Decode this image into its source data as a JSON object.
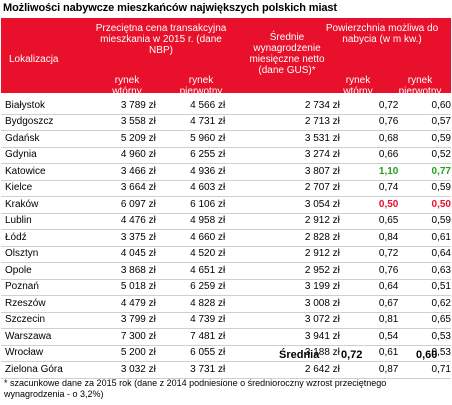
{
  "title": "Możliwości nabywcze mieszkańców największych polskich miast",
  "header": {
    "location": "Lokalizacja",
    "price": "Przeciętna cena transakcyjna mieszkania w 2015 r. (dane NBP)",
    "market_secondary": "rynek wtórny",
    "market_primary": "rynek pierwotny",
    "salary": "Średnie wynagrodzenie miesięczne netto (dane GUS)*",
    "area": "Powierzchnia możliwa do nabycia (w m kw.)",
    "area_secondary": "rynek wtórny",
    "area_primary": "rynek pierwotny"
  },
  "rows": [
    {
      "city": "Białystok",
      "secondary": "3 789 zł",
      "primary": "4 566 zł",
      "salary": "2 734 zł",
      "a_sec": "0,72",
      "a_pri": "0,60"
    },
    {
      "city": "Bydgoszcz",
      "secondary": "3 558 zł",
      "primary": "4 731 zł",
      "salary": "2 713 zł",
      "a_sec": "0,76",
      "a_pri": "0,57"
    },
    {
      "city": "Gdańsk",
      "secondary": "5 209 zł",
      "primary": "5 960 zł",
      "salary": "3 531 zł",
      "a_sec": "0,68",
      "a_pri": "0,59"
    },
    {
      "city": "Gdynia",
      "secondary": "4 960 zł",
      "primary": "6 255 zł",
      "salary": "3 274 zł",
      "a_sec": "0,66",
      "a_pri": "0,52"
    },
    {
      "city": "Katowice",
      "secondary": "3 466 zł",
      "primary": "4 936 zł",
      "salary": "3 807 zł",
      "a_sec": "1,10",
      "a_pri": "0,77",
      "highlight": "green"
    },
    {
      "city": "Kielce",
      "secondary": "3 664 zł",
      "primary": "4 603 zł",
      "salary": "2 707 zł",
      "a_sec": "0,74",
      "a_pri": "0,59"
    },
    {
      "city": "Kraków",
      "secondary": "6 097 zł",
      "primary": "6 106 zł",
      "salary": "3 054 zł",
      "a_sec": "0,50",
      "a_pri": "0,50",
      "highlight": "red"
    },
    {
      "city": "Lublin",
      "secondary": "4 476 zł",
      "primary": "4 958 zł",
      "salary": "2 912 zł",
      "a_sec": "0,65",
      "a_pri": "0,59"
    },
    {
      "city": "Łódź",
      "secondary": "3 375 zł",
      "primary": "4 660 zł",
      "salary": "2 828 zł",
      "a_sec": "0,84",
      "a_pri": "0,61"
    },
    {
      "city": "Olsztyn",
      "secondary": "4 045 zł",
      "primary": "4 520 zł",
      "salary": "2 912 zł",
      "a_sec": "0,72",
      "a_pri": "0,64"
    },
    {
      "city": "Opole",
      "secondary": "3 868 zł",
      "primary": "4 651 zł",
      "salary": "2 952 zł",
      "a_sec": "0,76",
      "a_pri": "0,63"
    },
    {
      "city": "Poznań",
      "secondary": "5 018 zł",
      "primary": "6 259 zł",
      "salary": "3 199 zł",
      "a_sec": "0,64",
      "a_pri": "0,51"
    },
    {
      "city": "Rzeszów",
      "secondary": "4 479 zł",
      "primary": "4 828 zł",
      "salary": "3 008 zł",
      "a_sec": "0,67",
      "a_pri": "0,62"
    },
    {
      "city": "Szczecin",
      "secondary": "3 799 zł",
      "primary": "4 739 zł",
      "salary": "3 072 zł",
      "a_sec": "0,81",
      "a_pri": "0,65"
    },
    {
      "city": "Warszawa",
      "secondary": "7 300 zł",
      "primary": "7 481 zł",
      "salary": "3 941 zł",
      "a_sec": "0,54",
      "a_pri": "0,53"
    },
    {
      "city": "Wrocław",
      "secondary": "5 200 zł",
      "primary": "6 055 zł",
      "salary": "3 188 zł",
      "a_sec": "0,61",
      "a_pri": "0,53"
    },
    {
      "city": "Zielona Góra",
      "secondary": "3 032 zł",
      "primary": "3 731 zł",
      "salary": "2 642 zł",
      "a_sec": "0,87",
      "a_pri": "0,71"
    }
  ],
  "summary": {
    "label": "Średnia",
    "a_sec": "0,72",
    "a_pri": "0,60"
  },
  "footnote": "* szacunkowe dane za 2015 rok (dane z 2014 podniesione o średnioroczny wzrost przeciętnego wynagrodzenia - o 3,2%)",
  "colors": {
    "header_red": "#e8102a",
    "highlight_green": "#22a020",
    "highlight_red": "#e8102a"
  }
}
